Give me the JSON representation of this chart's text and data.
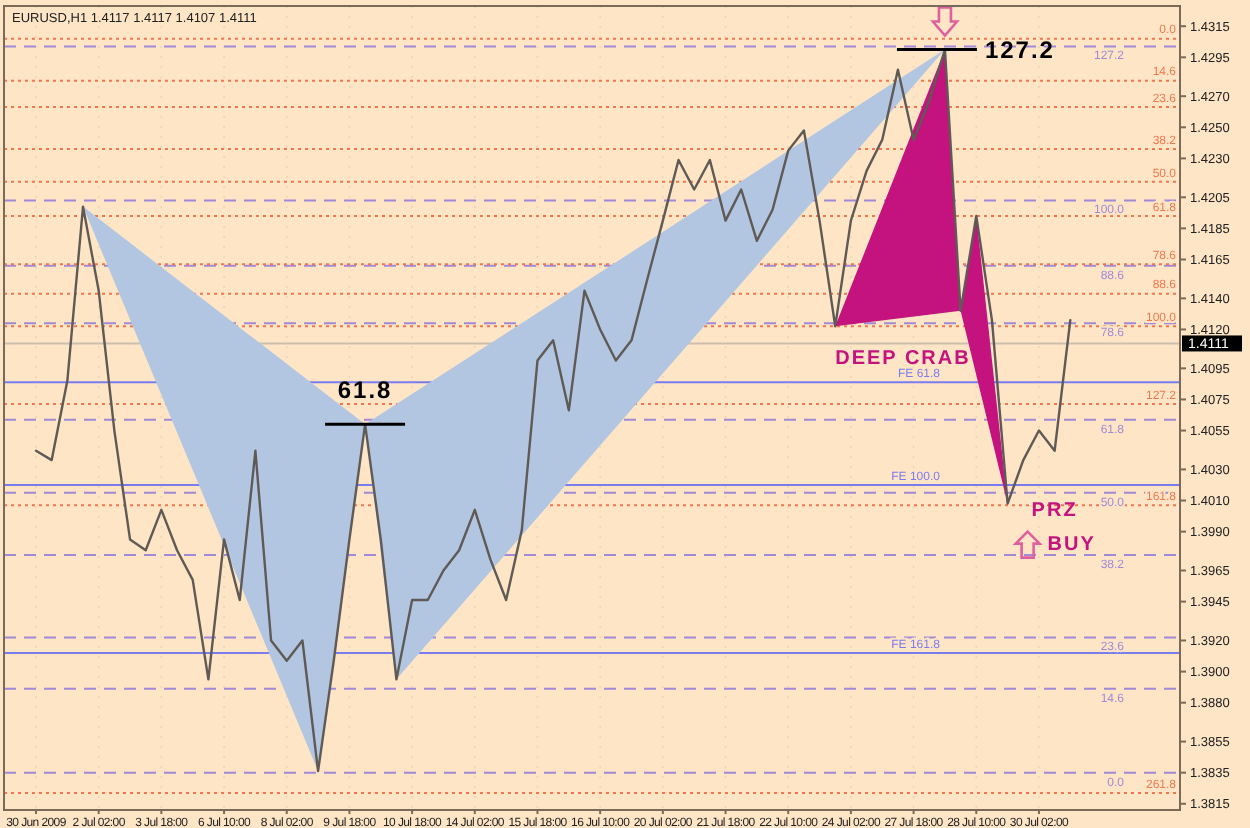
{
  "chart_data": {
    "type": "line",
    "title": "EURUSD,H1  1.4117 1.4117 1.4107 1.4111",
    "categories": [
      "30 Jun 2009",
      null,
      null,
      null,
      "2 Jul 02:00",
      null,
      null,
      null,
      "3 Jul 18:00",
      null,
      null,
      null,
      "6 Jul 10:00",
      null,
      null,
      null,
      "8 Jul 02:00",
      null,
      null,
      null,
      "9 Jul 18:00",
      null,
      null,
      null,
      "10 Jul 18:00",
      null,
      null,
      null,
      "14 Jul 02:00",
      null,
      null,
      null,
      "15 Jul 18:00",
      null,
      null,
      null,
      "16 Jul 10:00",
      null,
      null,
      null,
      "20 Jul 02:00",
      null,
      null,
      null,
      "21 Jul 18:00",
      null,
      null,
      null,
      "22 Jul 10:00",
      null,
      null,
      null,
      "24 Jul 02:00",
      null,
      null,
      null,
      "27 Jul 18:00",
      null,
      null,
      null,
      "28 Jul 10:00",
      null,
      null,
      null,
      "30 Jul 02:00",
      null,
      null
    ],
    "series": [
      {
        "color": "#5f5a55",
        "values": [
          1.4042,
          1.4036,
          1.4087,
          1.4199,
          1.4145,
          1.4055,
          1.3985,
          1.3978,
          1.4004,
          1.3978,
          1.3959,
          1.3895,
          1.3985,
          1.3946,
          1.4042,
          1.392,
          1.3907,
          1.392,
          1.3836,
          1.3907,
          1.3985,
          1.4059,
          1.3985,
          1.3895,
          1.3946,
          1.3946,
          1.3965,
          1.3978,
          1.4004,
          1.3972,
          1.3946,
          1.3991,
          1.41,
          1.4113,
          1.4068,
          1.4145,
          1.412,
          1.41,
          1.4113,
          1.4152,
          1.419,
          1.4229,
          1.421,
          1.4229,
          1.419,
          1.421,
          1.4177,
          1.4197,
          1.4235,
          1.4248,
          1.419,
          1.4122,
          1.419,
          1.4222,
          1.4242,
          1.4287,
          1.4242,
          1.4267,
          1.43,
          1.4132,
          1.4193,
          1.4126,
          1.4008,
          1.4036,
          1.4055,
          1.4042,
          1.4126
        ]
      },
      {
        "type": "area",
        "color": "#b2c6e2",
        "values": [
          null,
          null,
          null,
          1.4199,
          null,
          null,
          null,
          null,
          null,
          null,
          null,
          null,
          null,
          null,
          null,
          null,
          null,
          null,
          1.3836,
          null,
          null,
          1.4059,
          null,
          1.3895,
          null,
          null,
          null,
          null,
          null,
          null,
          null,
          null,
          null,
          null,
          null,
          null,
          null,
          null,
          null,
          null,
          null,
          null,
          null,
          null,
          null,
          null,
          null,
          null,
          null,
          null,
          null,
          null,
          null,
          null,
          null,
          null,
          null,
          null,
          1.43,
          null,
          null,
          null,
          null,
          null,
          null,
          null,
          null
        ]
      },
      {
        "type": "area",
        "color": "#c4127e",
        "values": [
          null,
          null,
          null,
          null,
          null,
          null,
          null,
          null,
          null,
          null,
          null,
          null,
          null,
          null,
          null,
          null,
          null,
          null,
          null,
          null,
          null,
          null,
          null,
          null,
          null,
          null,
          null,
          null,
          null,
          null,
          null,
          null,
          null,
          null,
          null,
          null,
          null,
          null,
          null,
          null,
          null,
          null,
          null,
          null,
          null,
          null,
          null,
          null,
          null,
          null,
          null,
          1.4122,
          null,
          null,
          null,
          null,
          null,
          null,
          1.43,
          1.4132,
          1.4193,
          null,
          1.4008,
          null,
          null,
          null,
          null
        ]
      }
    ],
    "ylim": [
      1.3811,
      1.4328
    ],
    "yticks": [
      {
        "value": 1.4315,
        "label": "1.4315"
      },
      {
        "value": 1.4295,
        "label": "1.4295"
      },
      {
        "value": 1.427,
        "label": "1.4270"
      },
      {
        "value": 1.425,
        "label": "1.4250"
      },
      {
        "value": 1.423,
        "label": "1.4230"
      },
      {
        "value": 1.4205,
        "label": "1.4205"
      },
      {
        "value": 1.4185,
        "label": "1.4185"
      },
      {
        "value": 1.4165,
        "label": "1.4165"
      },
      {
        "value": 1.414,
        "label": "1.4140"
      },
      {
        "value": 1.412,
        "label": "1.4120"
      },
      {
        "value": 1.4095,
        "label": "1.4095"
      },
      {
        "value": 1.4075,
        "label": "1.4075"
      },
      {
        "value": 1.4055,
        "label": "1.4055"
      },
      {
        "value": 1.403,
        "label": "1.4030"
      },
      {
        "value": 1.401,
        "label": "1.4010"
      },
      {
        "value": 1.399,
        "label": "1.3990"
      },
      {
        "value": 1.3965,
        "label": "1.3965"
      },
      {
        "value": 1.3945,
        "label": "1.3945"
      },
      {
        "value": 1.392,
        "label": "1.3920"
      },
      {
        "value": 1.39,
        "label": "1.3900"
      },
      {
        "value": 1.388,
        "label": "1.3880"
      },
      {
        "value": 1.3855,
        "label": "1.3855"
      },
      {
        "value": 1.3835,
        "label": "1.3835"
      },
      {
        "value": 1.3815,
        "label": "1.3815"
      }
    ],
    "grid": "x",
    "ref_lines": [
      {
        "axis": "y",
        "value": 1.4111,
        "color": "#cdbfae",
        "line_style": "solid"
      },
      {
        "axis": "y",
        "value": 1.4302,
        "color": "#a08ad8",
        "line_style": "dashed"
      },
      {
        "axis": "y",
        "value": 1.4203,
        "color": "#a08ad8",
        "line_style": "dashed"
      },
      {
        "axis": "y",
        "value": 1.4161,
        "color": "#a08ad8",
        "line_style": "dashed"
      },
      {
        "axis": "y",
        "value": 1.4124,
        "color": "#a08ad8",
        "line_style": "dashed"
      },
      {
        "axis": "y",
        "value": 1.4062,
        "color": "#a08ad8",
        "line_style": "dashed"
      },
      {
        "axis": "y",
        "value": 1.4015,
        "color": "#a08ad8",
        "line_style": "dashed"
      },
      {
        "axis": "y",
        "value": 1.3975,
        "color": "#a08ad8",
        "line_style": "dashed"
      },
      {
        "axis": "y",
        "value": 1.3922,
        "color": "#a08ad8",
        "line_style": "dashed"
      },
      {
        "axis": "y",
        "value": 1.3889,
        "color": "#a08ad8",
        "line_style": "dashed"
      },
      {
        "axis": "y",
        "value": 1.3835,
        "color": "#a08ad8",
        "line_style": "dashed"
      },
      {
        "axis": "y",
        "value": 1.4307,
        "color": "#f07850",
        "line_style": "dotted"
      },
      {
        "axis": "y",
        "value": 1.428,
        "color": "#f07850",
        "line_style": "dotted"
      },
      {
        "axis": "y",
        "value": 1.4263,
        "color": "#f07850",
        "line_style": "dotted"
      },
      {
        "axis": "y",
        "value": 1.4236,
        "color": "#f07850",
        "line_style": "dotted"
      },
      {
        "axis": "y",
        "value": 1.4215,
        "color": "#f07850",
        "line_style": "dotted"
      },
      {
        "axis": "y",
        "value": 1.4193,
        "color": "#f07850",
        "line_style": "dotted"
      },
      {
        "axis": "y",
        "value": 1.4162,
        "color": "#f07850",
        "line_style": "dotted"
      },
      {
        "axis": "y",
        "value": 1.4143,
        "color": "#f07850",
        "line_style": "dotted"
      },
      {
        "axis": "y",
        "value": 1.4122,
        "color": "#f07850",
        "line_style": "dotted"
      },
      {
        "axis": "y",
        "value": 1.4072,
        "color": "#f07850",
        "line_style": "dotted"
      },
      {
        "axis": "y",
        "value": 1.4007,
        "color": "#f07850",
        "line_style": "dotted"
      },
      {
        "axis": "y",
        "value": 1.3822,
        "color": "#f07850",
        "line_style": "dotted"
      },
      {
        "axis": "y",
        "value": 1.4086,
        "color": "#7b7bf0",
        "line_style": "solid"
      },
      {
        "axis": "y",
        "value": 1.402,
        "color": "#7b7bf0",
        "line_style": "solid"
      },
      {
        "axis": "y",
        "value": 1.3912,
        "color": "#7b7bf0",
        "line_style": "solid"
      }
    ],
    "annotations": [
      "61.8",
      "127.2",
      "DEEP CRAB",
      "PRZ",
      "BUY",
      "1.4111",
      "127.2",
      "100.0",
      "88.6",
      "78.6",
      "61.8",
      "50.0",
      "38.2",
      "23.6",
      "14.6",
      "0.0",
      "0.0",
      "14.6",
      "23.6",
      "38.2",
      "50.0",
      "61.8",
      "78.6",
      "88.6",
      "100.0",
      "127.2",
      "161.8",
      "261.8",
      "FE 61.8",
      "FE 100.0",
      "FE 161.8"
    ]
  }
}
